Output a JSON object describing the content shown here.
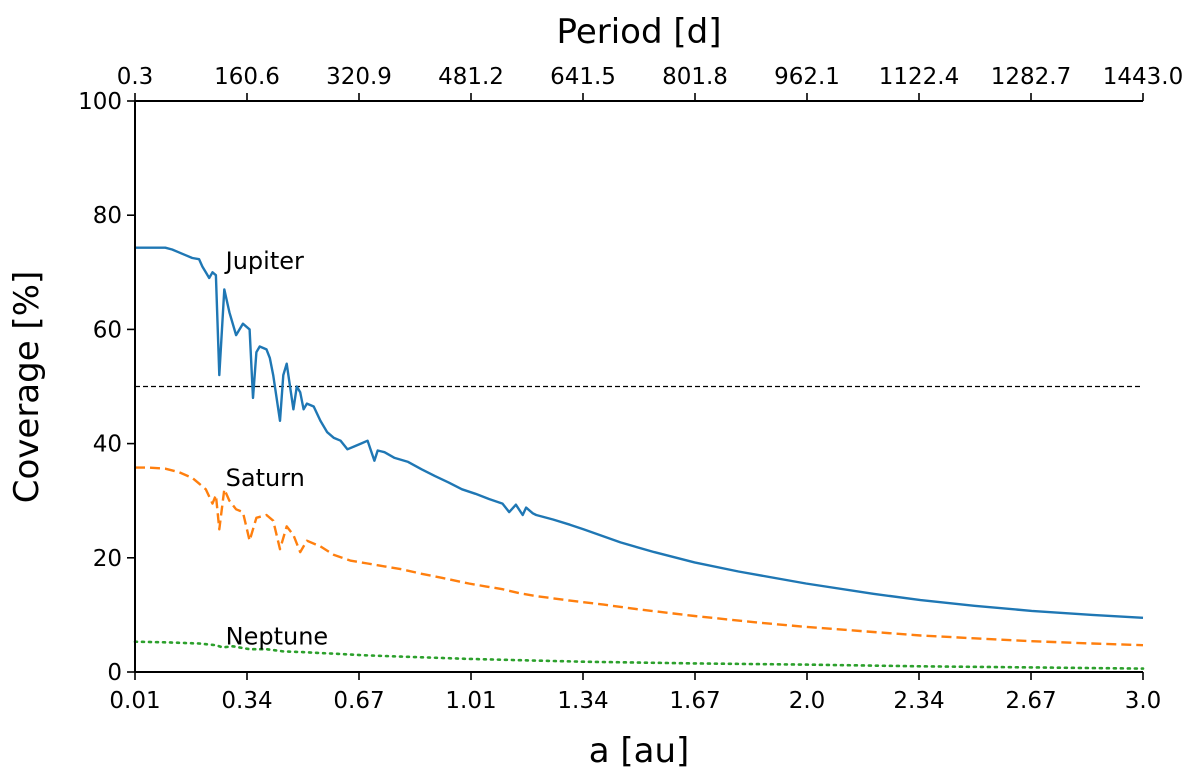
{
  "chart_data": {
    "type": "line",
    "title": "",
    "xlabel": "a [au]",
    "ylabel": "Coverage [%]",
    "x2label": "Period [d]",
    "xlim": [
      0.01,
      3.0
    ],
    "ylim": [
      0,
      100
    ],
    "grid": false,
    "legend": "none",
    "x_ticks": [
      "0.01",
      "0.34",
      "0.67",
      "1.01",
      "1.34",
      "1.67",
      "2.0",
      "2.34",
      "2.67",
      "3.0"
    ],
    "x2_ticks": [
      "0.3",
      "160.6",
      "320.9",
      "481.2",
      "641.5",
      "801.8",
      "962.1",
      "1122.4",
      "1282.7",
      "1443.0"
    ],
    "y_ticks": [
      "0",
      "20",
      "40",
      "60",
      "80",
      "100"
    ],
    "reference_line": {
      "y": 50,
      "style": "dashed",
      "color": "#000000"
    },
    "annotations": [
      {
        "text": "Jupiter",
        "x": 0.27,
        "y": 72
      },
      {
        "text": "Saturn",
        "x": 0.27,
        "y": 34
      },
      {
        "text": "Neptune",
        "x": 0.27,
        "y": 6.2
      }
    ],
    "series": [
      {
        "label": "Jupiter",
        "color": "#1f77b4",
        "style": "solid",
        "x": [
          0.01,
          0.05,
          0.1,
          0.12,
          0.14,
          0.16,
          0.18,
          0.2,
          0.21,
          0.22,
          0.23,
          0.24,
          0.25,
          0.26,
          0.275,
          0.29,
          0.31,
          0.33,
          0.35,
          0.36,
          0.37,
          0.38,
          0.4,
          0.41,
          0.42,
          0.44,
          0.45,
          0.46,
          0.48,
          0.49,
          0.5,
          0.51,
          0.52,
          0.54,
          0.56,
          0.58,
          0.6,
          0.62,
          0.64,
          0.66,
          0.68,
          0.7,
          0.72,
          0.73,
          0.75,
          0.78,
          0.82,
          0.86,
          0.9,
          0.94,
          0.98,
          1.02,
          1.06,
          1.1,
          1.12,
          1.14,
          1.16,
          1.17,
          1.19,
          1.2,
          1.25,
          1.3,
          1.34,
          1.45,
          1.55,
          1.67,
          1.8,
          2.0,
          2.2,
          2.34,
          2.5,
          2.67,
          2.85,
          3.0
        ],
        "y": [
          74.3,
          74.3,
          74.3,
          74.0,
          73.5,
          73.0,
          72.5,
          72.3,
          71.0,
          70.0,
          69.0,
          70.0,
          69.5,
          52.0,
          67.0,
          63.0,
          59.0,
          61.0,
          60.0,
          48.0,
          56.0,
          57.0,
          56.5,
          55.0,
          52.0,
          44.0,
          52.0,
          54.0,
          46.0,
          50.0,
          49.0,
          46.0,
          47.0,
          46.5,
          44.0,
          42.0,
          41.0,
          40.5,
          39.0,
          39.5,
          40.0,
          40.5,
          37.0,
          38.8,
          38.5,
          37.5,
          36.8,
          35.5,
          34.3,
          33.2,
          32.0,
          31.2,
          30.3,
          29.5,
          28.0,
          29.3,
          27.5,
          28.8,
          27.8,
          27.5,
          26.7,
          25.8,
          25.0,
          22.7,
          21.0,
          19.2,
          17.6,
          15.5,
          13.7,
          12.6,
          11.6,
          10.7,
          10.0,
          9.5
        ]
      },
      {
        "label": "Saturn",
        "color": "#ff7f0e",
        "style": "dashed",
        "x": [
          0.01,
          0.05,
          0.1,
          0.14,
          0.18,
          0.2,
          0.22,
          0.24,
          0.25,
          0.26,
          0.275,
          0.29,
          0.31,
          0.33,
          0.35,
          0.37,
          0.4,
          0.42,
          0.44,
          0.46,
          0.48,
          0.5,
          0.52,
          0.56,
          0.6,
          0.65,
          0.7,
          0.75,
          0.8,
          0.86,
          0.92,
          1.0,
          1.05,
          1.1,
          1.15,
          1.2,
          1.3,
          1.4,
          1.5,
          1.67,
          1.85,
          2.0,
          2.2,
          2.34,
          2.5,
          2.67,
          2.85,
          3.0
        ],
        "y": [
          35.8,
          35.8,
          35.6,
          35.0,
          34.0,
          33.0,
          32.0,
          29.5,
          31.0,
          25.0,
          32.0,
          30.0,
          28.5,
          28.0,
          23.0,
          27.0,
          27.5,
          26.5,
          21.5,
          25.5,
          24.0,
          21.0,
          23.0,
          22.0,
          20.5,
          19.5,
          19.0,
          18.5,
          18.0,
          17.2,
          16.5,
          15.5,
          15.0,
          14.5,
          13.8,
          13.3,
          12.5,
          11.8,
          11.0,
          9.8,
          8.7,
          7.9,
          7.0,
          6.4,
          5.9,
          5.4,
          5.0,
          4.7
        ]
      },
      {
        "label": "Neptune",
        "color": "#2ca02c",
        "style": "dotted",
        "x": [
          0.01,
          0.1,
          0.2,
          0.25,
          0.27,
          0.3,
          0.35,
          0.4,
          0.45,
          0.5,
          0.6,
          0.7,
          0.8,
          1.0,
          1.2,
          1.34,
          1.67,
          2.0,
          2.34,
          2.67,
          3.0
        ],
        "y": [
          5.3,
          5.2,
          5.0,
          4.7,
          4.3,
          4.5,
          4.0,
          4.0,
          3.6,
          3.5,
          3.2,
          2.9,
          2.7,
          2.3,
          2.0,
          1.8,
          1.5,
          1.3,
          1.0,
          0.8,
          0.6
        ]
      }
    ]
  }
}
